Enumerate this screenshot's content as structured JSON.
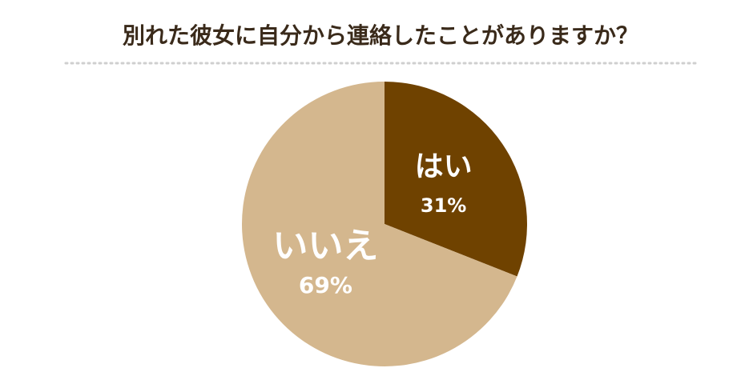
{
  "chart_data": {
    "type": "pie",
    "title": "別れた彼女に自分から連絡したことがありますか？",
    "categories": [
      "はい",
      "いいえ"
    ],
    "values": [
      31,
      69
    ],
    "value_labels": [
      "31%",
      "69%"
    ],
    "colors": [
      "#6f4200",
      "#d4b78e"
    ]
  }
}
